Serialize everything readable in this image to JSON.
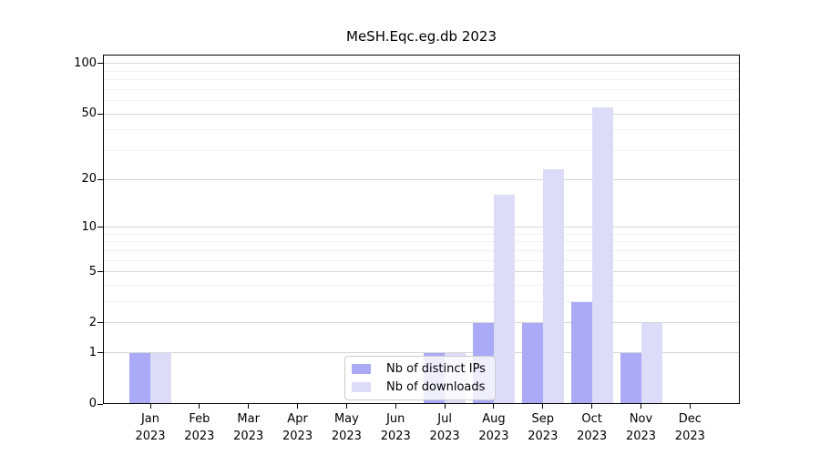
{
  "chart_data": {
    "type": "bar",
    "title": "MeSH.Eqc.eg.db 2023",
    "categories": [
      "Jan 2023",
      "Feb 2023",
      "Mar 2023",
      "Apr 2023",
      "May 2023",
      "Jun 2023",
      "Jul 2023",
      "Aug 2023",
      "Sep 2023",
      "Oct 2023",
      "Nov 2023",
      "Dec 2023"
    ],
    "series": [
      {
        "name": "Nb of distinct IPs",
        "color": "#aaaaf6",
        "values": [
          1,
          0,
          0,
          0,
          0,
          0,
          1,
          2,
          2,
          3,
          1,
          0
        ]
      },
      {
        "name": "Nb of downloads",
        "color": "#dcdcf9",
        "values": [
          1,
          0,
          0,
          0,
          0,
          0,
          1,
          16,
          23,
          55,
          2,
          0
        ]
      }
    ],
    "xlabel": "",
    "ylabel": "",
    "yscale": "log1p",
    "ylim": [
      0,
      113
    ],
    "yticks": [
      0,
      1,
      2,
      5,
      10,
      20,
      50,
      100
    ],
    "minor_gridlines": [
      3,
      4,
      6,
      7,
      8,
      9,
      30,
      40,
      60,
      70,
      80,
      90
    ],
    "grid": true,
    "legend_position": "lower center",
    "colors": {
      "axis": "#000000",
      "major_grid": "#d6d6d6",
      "minor_grid": "#f0f0f0",
      "background": "#ffffff",
      "legend_border": "#cccccc"
    }
  }
}
